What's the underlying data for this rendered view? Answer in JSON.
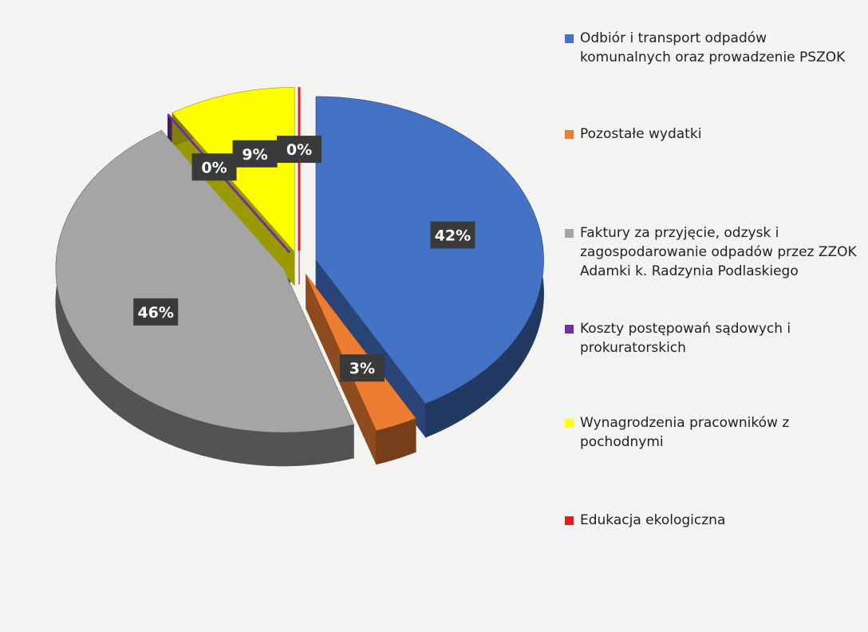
{
  "chart_data": {
    "type": "pie",
    "categories": [
      "Odbiór i transport odpadów komunalnych oraz prowadzenie PSZOK",
      "Pozostałe wydatki",
      "Faktury za przyjęcie, odzysk i zagospodarowanie odpadów przez ZZOK Adamki k. Radzynia Podlaskiego",
      "Koszty postępowań sądowych i prokuratorskich",
      "Wynagrodzenia pracowników z pochodnymi",
      "Edukacja ekologiczna"
    ],
    "values": [
      42,
      3,
      46,
      0,
      9,
      0
    ],
    "value_labels": [
      "42%",
      "3%",
      "46%",
      "0%",
      "9%",
      "0%"
    ],
    "colors": [
      "#4472c4",
      "#ed7d31",
      "#a5a5a5",
      "#7030a0",
      "#ffff00",
      "#e02020"
    ]
  }
}
